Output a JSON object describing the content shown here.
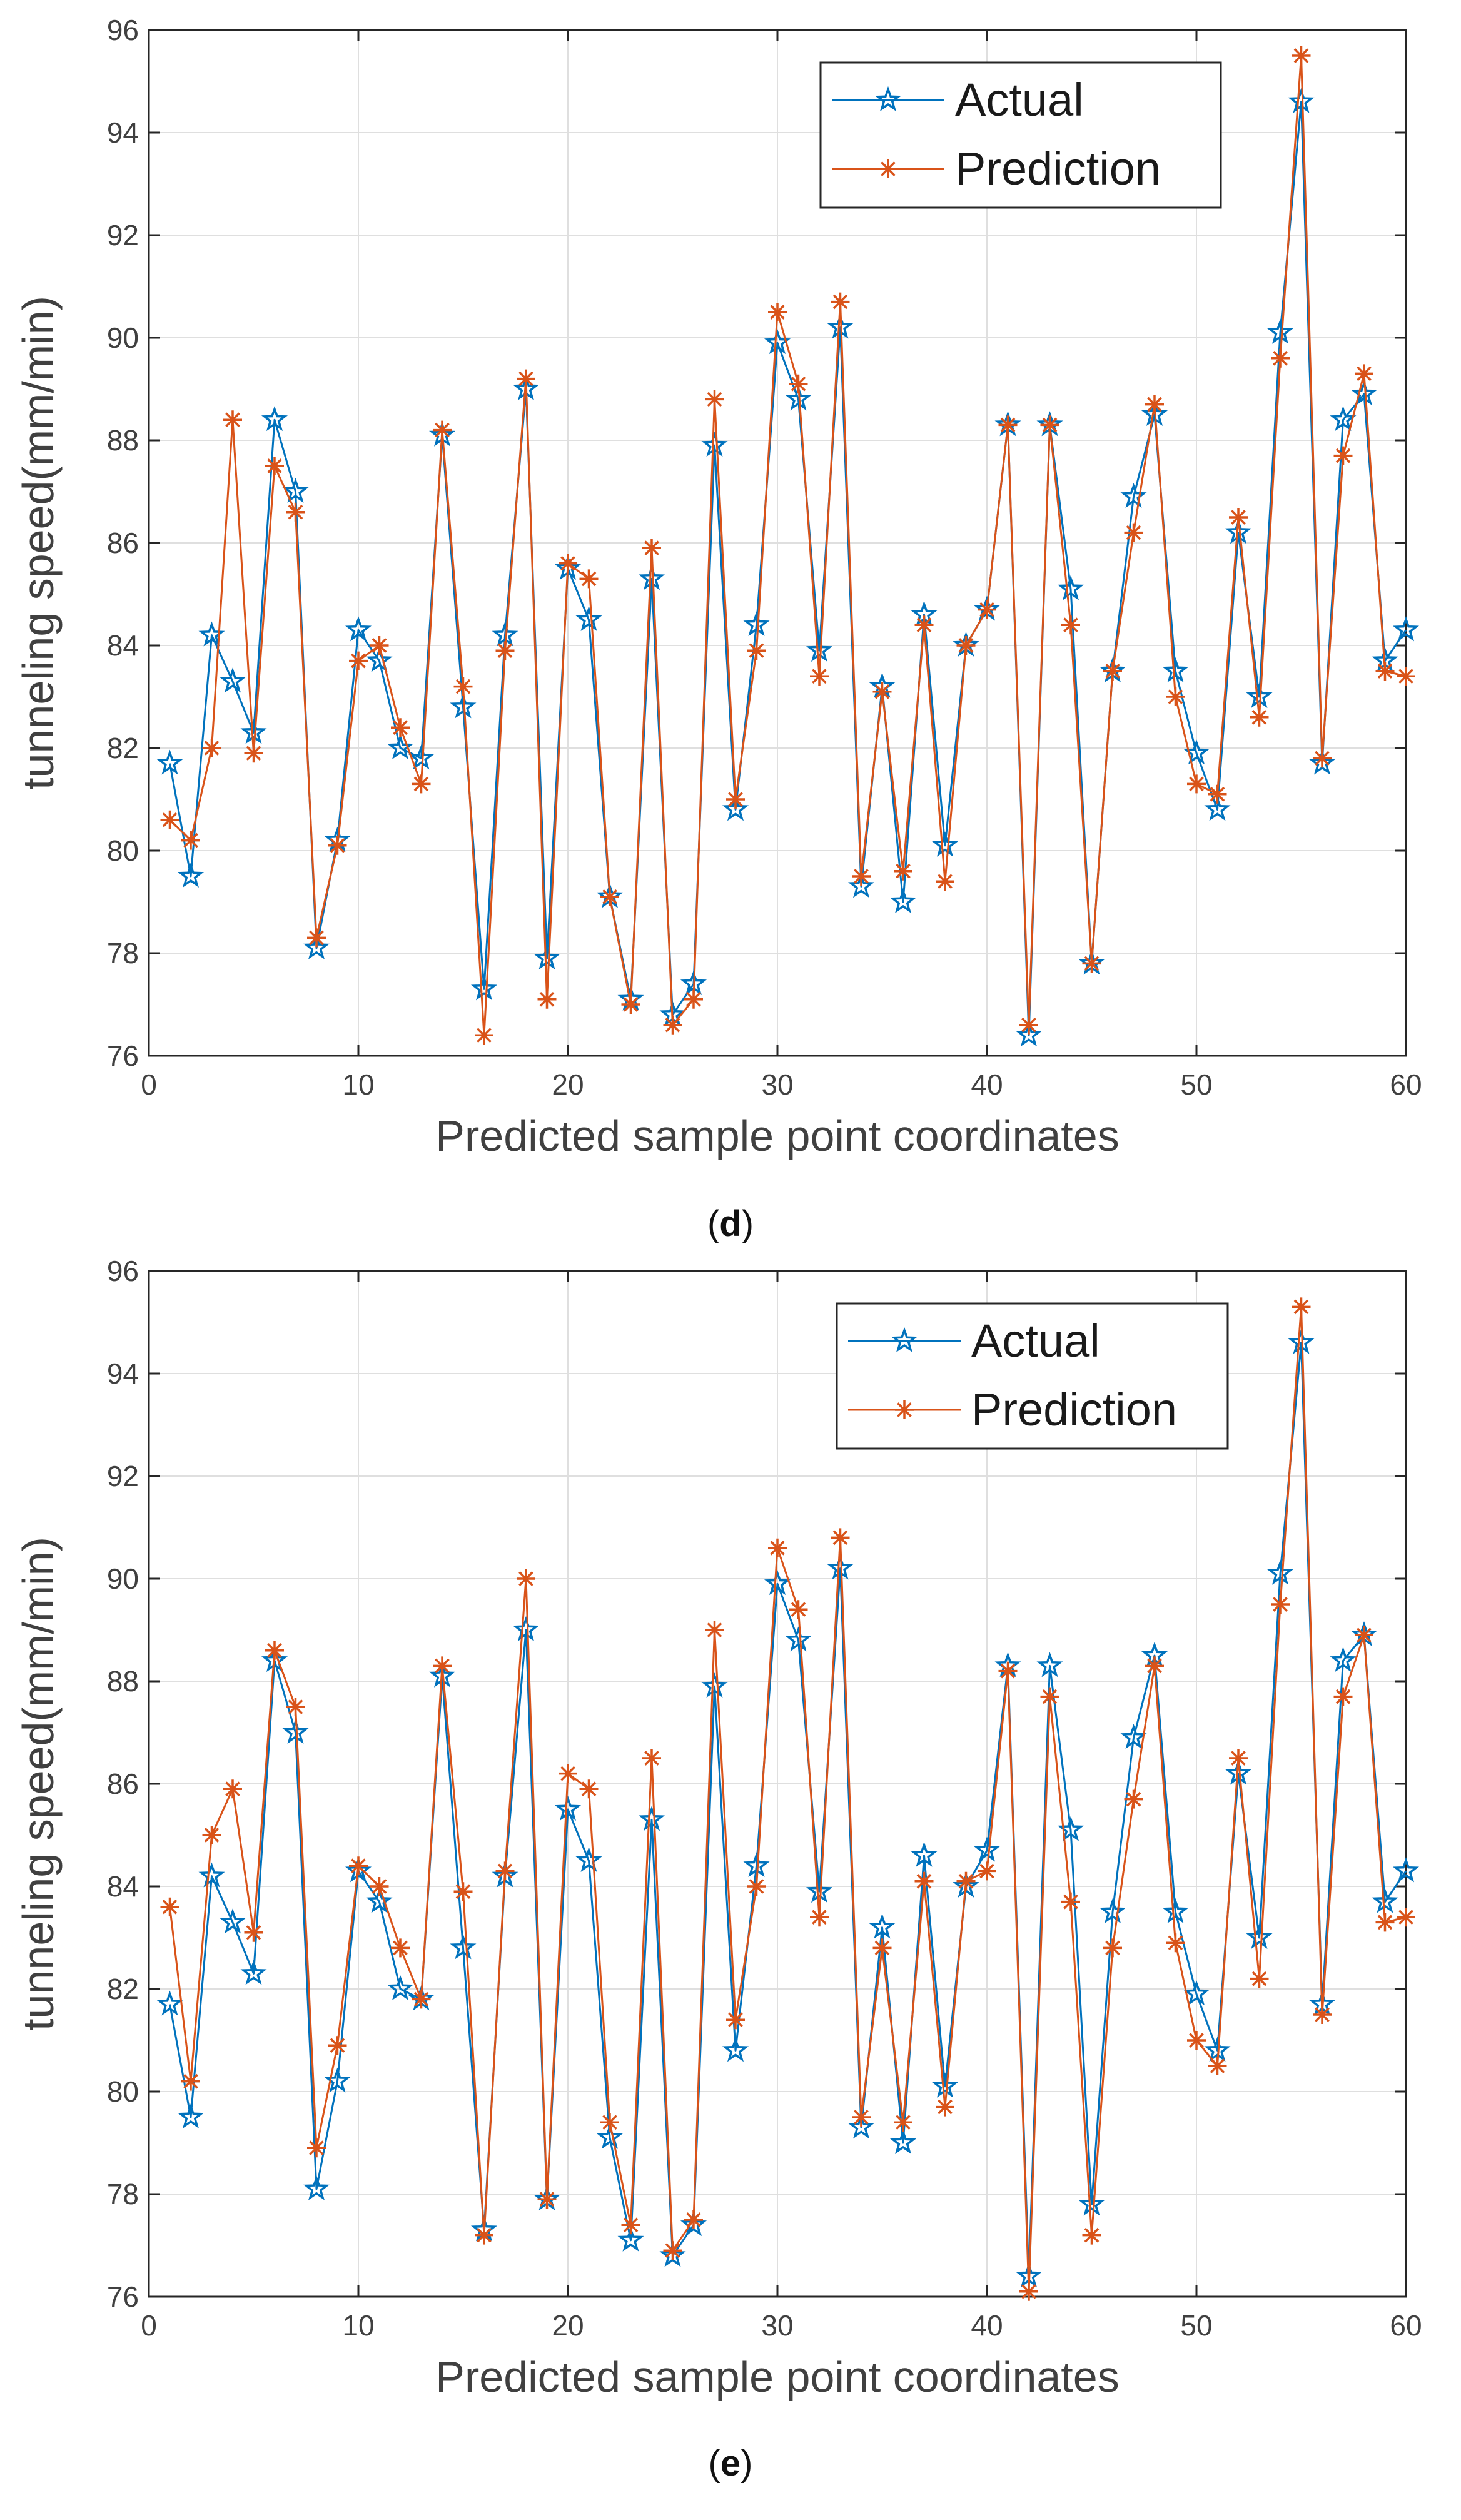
{
  "colors": {
    "actual": "#0072BD",
    "prediction": "#D95319",
    "grid": "#DFDFDF",
    "axis": "#262626",
    "text": "#404040"
  },
  "chart_data": [
    {
      "id": "d",
      "type": "line",
      "caption_prefix": "(",
      "caption_letter": "d",
      "caption_suffix": ")",
      "xlabel": "Predicted sample point coordinates",
      "ylabel": "tunneling speed(mm/min)",
      "xlim": [
        0,
        60
      ],
      "ylim": [
        76,
        96
      ],
      "xticks": [
        "0",
        "10",
        "20",
        "30",
        "40",
        "50",
        "60"
      ],
      "yticks": [
        "76",
        "78",
        "80",
        "82",
        "84",
        "86",
        "88",
        "90",
        "92",
        "94",
        "96"
      ],
      "grid": true,
      "legend_position": "top-right",
      "x": [
        1,
        2,
        3,
        4,
        5,
        6,
        7,
        8,
        9,
        10,
        11,
        12,
        13,
        14,
        15,
        16,
        17,
        18,
        19,
        20,
        21,
        22,
        23,
        24,
        25,
        26,
        27,
        28,
        29,
        30,
        31,
        32,
        33,
        34,
        35,
        36,
        37,
        38,
        39,
        40,
        41,
        42,
        43,
        44,
        45,
        46,
        47,
        48,
        49,
        50,
        51,
        52,
        53,
        54,
        55,
        56,
        57,
        58,
        59,
        60
      ],
      "series": [
        {
          "name": "Actual",
          "marker": "star",
          "values": [
            81.7,
            79.5,
            84.2,
            83.3,
            82.3,
            88.4,
            87.0,
            78.1,
            80.2,
            84.3,
            83.7,
            82.0,
            81.8,
            88.1,
            82.8,
            77.3,
            84.2,
            89.0,
            77.9,
            85.5,
            84.5,
            79.1,
            77.1,
            85.3,
            76.8,
            77.4,
            87.9,
            80.8,
            84.4,
            89.9,
            88.8,
            83.9,
            90.2,
            79.3,
            83.2,
            79.0,
            84.6,
            80.1,
            84.0,
            84.7,
            88.3,
            76.4,
            88.3,
            85.1,
            77.8,
            83.5,
            86.9,
            88.5,
            83.5,
            81.9,
            80.8,
            86.2,
            83.0,
            90.1,
            94.6,
            81.7,
            88.4,
            88.9,
            83.7,
            84.3
          ]
        },
        {
          "name": "Prediction",
          "marker": "asterisk",
          "values": [
            80.6,
            80.2,
            82.0,
            88.4,
            81.9,
            87.5,
            86.6,
            78.3,
            80.1,
            83.7,
            84.0,
            82.4,
            81.3,
            88.2,
            83.2,
            76.4,
            83.9,
            89.2,
            77.1,
            85.6,
            85.3,
            79.1,
            77.0,
            85.9,
            76.6,
            77.1,
            88.8,
            81.0,
            83.9,
            90.5,
            89.1,
            83.4,
            90.7,
            79.5,
            83.1,
            79.6,
            84.4,
            79.4,
            84.0,
            84.7,
            88.3,
            76.6,
            88.3,
            84.4,
            77.8,
            83.5,
            86.2,
            88.7,
            83.0,
            81.3,
            81.1,
            86.5,
            82.6,
            89.6,
            95.5,
            81.8,
            87.7,
            89.3,
            83.5,
            83.4
          ]
        }
      ]
    },
    {
      "id": "e",
      "type": "line",
      "caption_prefix": "(",
      "caption_letter": "e",
      "caption_suffix": ")",
      "xlabel": "Predicted sample point coordinates",
      "ylabel": "tunneling speed(mm/min)",
      "xlim": [
        0,
        60
      ],
      "ylim": [
        76,
        96
      ],
      "xticks": [
        "0",
        "10",
        "20",
        "30",
        "40",
        "50",
        "60"
      ],
      "yticks": [
        "76",
        "78",
        "80",
        "82",
        "84",
        "86",
        "88",
        "90",
        "92",
        "94",
        "96"
      ],
      "grid": true,
      "legend_position": "top-right",
      "x": [
        1,
        2,
        3,
        4,
        5,
        6,
        7,
        8,
        9,
        10,
        11,
        12,
        13,
        14,
        15,
        16,
        17,
        18,
        19,
        20,
        21,
        22,
        23,
        24,
        25,
        26,
        27,
        28,
        29,
        30,
        31,
        32,
        33,
        34,
        35,
        36,
        37,
        38,
        39,
        40,
        41,
        42,
        43,
        44,
        45,
        46,
        47,
        48,
        49,
        50,
        51,
        52,
        53,
        54,
        55,
        56,
        57,
        58,
        59,
        60
      ],
      "series": [
        {
          "name": "Actual",
          "marker": "star",
          "values": [
            81.7,
            79.5,
            84.2,
            83.3,
            82.3,
            88.4,
            87.0,
            78.1,
            80.2,
            84.3,
            83.7,
            82.0,
            81.8,
            88.1,
            82.8,
            77.3,
            84.2,
            89.0,
            77.9,
            85.5,
            84.5,
            79.1,
            77.1,
            85.3,
            76.8,
            77.4,
            87.9,
            80.8,
            84.4,
            89.9,
            88.8,
            83.9,
            90.2,
            79.3,
            83.2,
            79.0,
            84.6,
            80.1,
            84.0,
            84.7,
            88.3,
            76.4,
            88.3,
            85.1,
            77.8,
            83.5,
            86.9,
            88.5,
            83.5,
            81.9,
            80.8,
            86.2,
            83.0,
            90.1,
            94.6,
            81.7,
            88.4,
            88.9,
            83.7,
            84.3
          ]
        },
        {
          "name": "Prediction",
          "marker": "asterisk",
          "values": [
            83.6,
            80.2,
            85.0,
            85.9,
            83.1,
            88.6,
            87.5,
            78.9,
            80.9,
            84.4,
            84.0,
            82.8,
            81.8,
            88.3,
            83.9,
            77.2,
            84.3,
            90.0,
            77.9,
            86.2,
            85.9,
            79.4,
            77.4,
            86.5,
            76.9,
            77.5,
            89.0,
            81.4,
            84.0,
            90.6,
            89.4,
            83.4,
            90.8,
            79.5,
            82.8,
            79.4,
            84.1,
            79.7,
            84.1,
            84.3,
            88.2,
            76.1,
            87.7,
            83.7,
            77.2,
            82.8,
            85.7,
            88.3,
            82.9,
            81.0,
            80.5,
            86.5,
            82.2,
            89.5,
            95.3,
            81.5,
            87.7,
            88.9,
            83.3,
            83.4
          ]
        }
      ]
    }
  ]
}
